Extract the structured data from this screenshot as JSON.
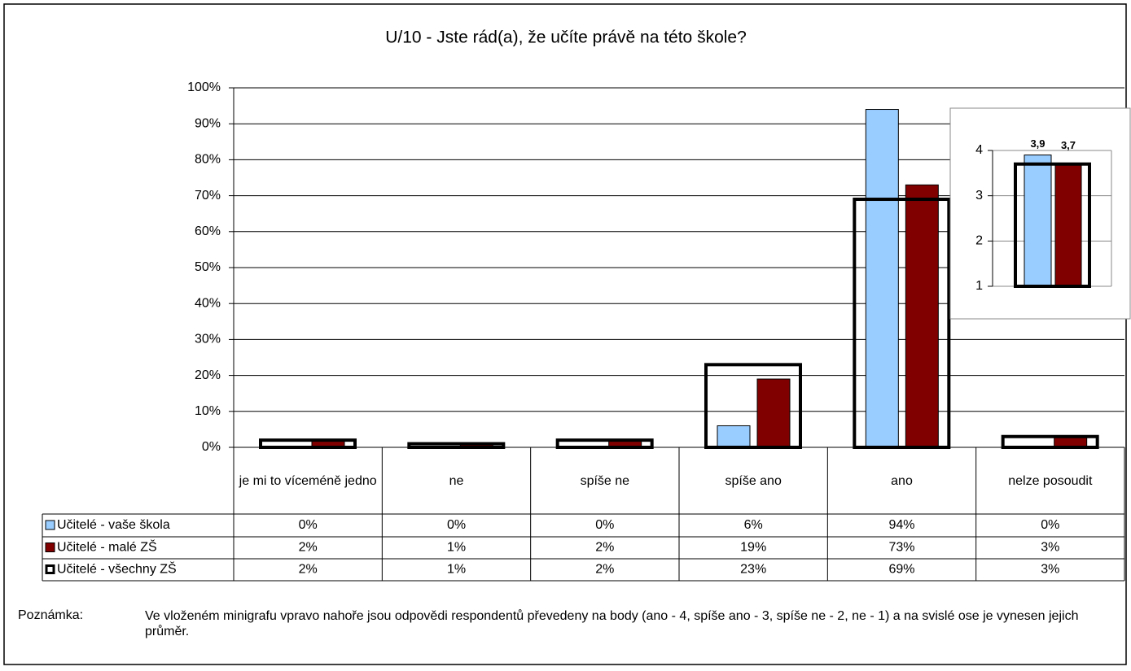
{
  "chart_data": [
    {
      "type": "bar",
      "title": "U/10 - Jste rád(a), že učíte právě na této škole?",
      "categories": [
        "je mi to víceméně jedno",
        "ne",
        "spíše ne",
        "spíše ano",
        "ano",
        "nelze posoudit"
      ],
      "ylim": [
        0,
        100
      ],
      "yticks": [
        {
          "value": 0,
          "label": "0%"
        },
        {
          "value": 10,
          "label": "10%"
        },
        {
          "value": 20,
          "label": "20%"
        },
        {
          "value": 30,
          "label": "30%"
        },
        {
          "value": 40,
          "label": "40%"
        },
        {
          "value": 50,
          "label": "50%"
        },
        {
          "value": 60,
          "label": "60%"
        },
        {
          "value": 70,
          "label": "70%"
        },
        {
          "value": 80,
          "label": "80%"
        },
        {
          "value": 90,
          "label": "90%"
        },
        {
          "value": 100,
          "label": "100%"
        }
      ],
      "grid": true,
      "series": [
        {
          "name": "Učitelé - vaše škola",
          "color": "#99ccff",
          "values": [
            0,
            0,
            0,
            6,
            94,
            0
          ],
          "value_labels": [
            "0%",
            "0%",
            "0%",
            "6%",
            "94%",
            "0%"
          ]
        },
        {
          "name": "Učitelé - malé ZŠ",
          "color": "#800000",
          "values": [
            2,
            1,
            2,
            19,
            73,
            3
          ],
          "value_labels": [
            "2%",
            "1%",
            "2%",
            "19%",
            "73%",
            "3%"
          ]
        },
        {
          "name": "Učitelé - všechny ZŠ",
          "color": "#ffffff",
          "values": [
            2,
            1,
            2,
            23,
            69,
            3
          ],
          "value_labels": [
            "2%",
            "1%",
            "2%",
            "23%",
            "69%",
            "3%"
          ]
        }
      ]
    },
    {
      "type": "bar",
      "ylim": [
        1,
        4
      ],
      "yticks": [
        1,
        2,
        3,
        4
      ],
      "grid": true,
      "series": [
        {
          "color": "#99ccff",
          "values": [
            3.9
          ],
          "value_labels": [
            "3,9"
          ]
        },
        {
          "color": "#800000",
          "values": [
            3.7
          ],
          "value_labels": [
            "3,7"
          ]
        },
        {
          "color": "#ffffff",
          "values": [
            3.7
          ]
        }
      ]
    }
  ],
  "note": {
    "label": "Poznámka:",
    "text": "Ve vloženém minigrafu vpravo nahoře jsou odpovědi respondentů převedeny na body (ano - 4, spíše ano - 3, spíše ne - 2, ne - 1) a na svislé ose je vynesen jejich průměr."
  }
}
